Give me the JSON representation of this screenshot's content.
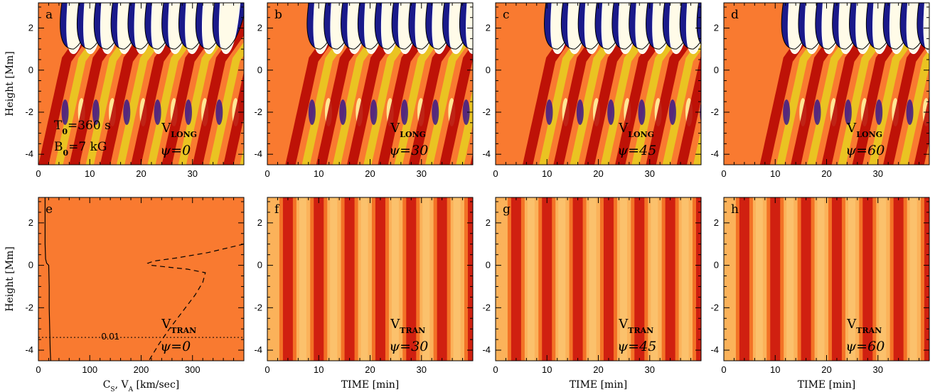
{
  "figure": {
    "row1_ylabel": "Height [Mm]",
    "row2_ylabel": "Height [Mm]"
  },
  "chart_data": [
    {
      "type": "heatmap",
      "panel": "a",
      "title": "",
      "xlim": [
        0,
        40
      ],
      "ylim": [
        -4.5,
        3.2
      ],
      "xticks": [
        0,
        10,
        20,
        30
      ],
      "yticks": [
        -4,
        -2,
        0,
        2
      ],
      "xlabel": "",
      "ylabel": "Height [Mm]",
      "annot_var": "V",
      "annot_sub": "LONG",
      "psi_label": "ψ=0",
      "psi": 0,
      "extra": {
        "T0_label": "T",
        "T0_sub": "0",
        "T0_value": "=360  s",
        "B0_label": "B",
        "B0_sub": "0",
        "B0_value": "=7  kG"
      }
    },
    {
      "type": "heatmap",
      "panel": "b",
      "title": "",
      "xlim": [
        0,
        40
      ],
      "ylim": [
        -4.5,
        3.2
      ],
      "xticks": [
        0,
        10,
        20,
        30
      ],
      "yticks": [
        -4,
        -2,
        0,
        2
      ],
      "xlabel": "",
      "ylabel": "",
      "annot_var": "V",
      "annot_sub": "LONG",
      "psi_label": "ψ=30",
      "psi": 30
    },
    {
      "type": "heatmap",
      "panel": "c",
      "title": "",
      "xlim": [
        0,
        40
      ],
      "ylim": [
        -4.5,
        3.2
      ],
      "xticks": [
        0,
        10,
        20,
        30
      ],
      "yticks": [
        -4,
        -2,
        0,
        2
      ],
      "xlabel": "",
      "ylabel": "",
      "annot_var": "V",
      "annot_sub": "LONG",
      "psi_label": "ψ=45",
      "psi": 45
    },
    {
      "type": "heatmap",
      "panel": "d",
      "title": "",
      "xlim": [
        0,
        40
      ],
      "ylim": [
        -4.5,
        3.2
      ],
      "xticks": [
        0,
        10,
        20,
        30
      ],
      "yticks": [
        -4,
        -2,
        0,
        2
      ],
      "xlabel": "",
      "ylabel": "",
      "annot_var": "V",
      "annot_sub": "LONG",
      "psi_label": "ψ=60",
      "psi": 60
    },
    {
      "type": "line",
      "panel": "e",
      "title": "",
      "xlim": [
        0,
        400
      ],
      "ylim": [
        -4.5,
        3.2
      ],
      "xticks": [
        0,
        100,
        200,
        300
      ],
      "yticks": [
        -4,
        -2,
        0,
        2
      ],
      "xlabel": "C",
      "xlabel_sub1": "S",
      "xlabel_mid": ", V",
      "xlabel_sub2": "A",
      "xlabel_tail": " [km/sec]",
      "ylabel": "Height [Mm]",
      "annot_var": "V",
      "annot_sub": "TRAN",
      "psi_label": "ψ=0",
      "psi": 0,
      "hline_label": "0.01",
      "hline_y": -3.4,
      "series": [
        {
          "style": "solid",
          "points": [
            [
              13,
              3.2
            ],
            [
              13,
              1.0
            ],
            [
              14,
              0.3
            ],
            [
              16,
              0.1
            ],
            [
              20,
              0.0
            ],
            [
              21,
              -1.0
            ],
            [
              21,
              -2.0
            ],
            [
              22,
              -3.0
            ],
            [
              23,
              -4.0
            ],
            [
              24,
              -4.5
            ]
          ]
        },
        {
          "style": "dashed",
          "points": [
            [
              400,
              1.0
            ],
            [
              330,
              0.6
            ],
            [
              270,
              0.35
            ],
            [
              225,
              0.2
            ],
            [
              213,
              0.1
            ],
            [
              220,
              0.0
            ],
            [
              250,
              -0.08
            ],
            [
              290,
              -0.18
            ],
            [
              325,
              -0.35
            ],
            [
              320,
              -0.8
            ],
            [
              305,
              -1.4
            ],
            [
              280,
              -2.2
            ],
            [
              255,
              -3.0
            ],
            [
              235,
              -3.7
            ],
            [
              215,
              -4.5
            ]
          ]
        }
      ]
    },
    {
      "type": "heatmap",
      "panel": "f",
      "title": "",
      "xlim": [
        0,
        40
      ],
      "ylim": [
        -4.5,
        3.2
      ],
      "xticks": [
        0,
        10,
        20,
        30
      ],
      "yticks": [
        -4,
        -2,
        0,
        2
      ],
      "xlabel": "TIME [min]",
      "ylabel": "",
      "annot_var": "V",
      "annot_sub": "TRAN",
      "psi_label": "ψ=30",
      "psi": 30
    },
    {
      "type": "heatmap",
      "panel": "g",
      "title": "",
      "xlim": [
        0,
        40
      ],
      "ylim": [
        -4.5,
        3.2
      ],
      "xticks": [
        0,
        10,
        20,
        30
      ],
      "yticks": [
        -4,
        -2,
        0,
        2
      ],
      "xlabel": "TIME [min]",
      "ylabel": "",
      "annot_var": "V",
      "annot_sub": "TRAN",
      "psi_label": "ψ=45",
      "psi": 45
    },
    {
      "type": "heatmap",
      "panel": "h",
      "title": "",
      "xlim": [
        0,
        40
      ],
      "ylim": [
        -4.5,
        3.2
      ],
      "xticks": [
        0,
        10,
        20,
        30
      ],
      "yticks": [
        -4,
        -2,
        0,
        2
      ],
      "xlabel": "TIME [min]",
      "ylabel": "",
      "annot_var": "V",
      "annot_sub": "TRAN",
      "psi_label": "ψ=60",
      "psi": 60
    }
  ]
}
